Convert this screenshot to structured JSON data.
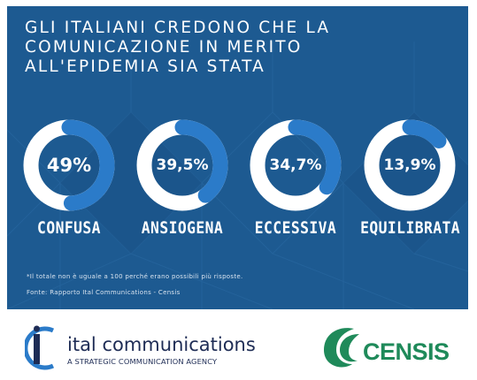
{
  "title_lines": [
    "GLI ITALIANI CREDONO CHE LA",
    "COMUNICAZIONE IN MERITO",
    "ALL'EPIDEMIA SIA STATA"
  ],
  "chart_data": {
    "type": "donut",
    "categories": [
      "CONFUSA",
      "ANSIOGENA",
      "ECCESSIVA",
      "EQUILIBRATA"
    ],
    "values": [
      49,
      39.5,
      34.7,
      13.9
    ],
    "value_labels": [
      "49%",
      "39,5%",
      "34,7%",
      "13,9%"
    ],
    "max": 100
  },
  "footnote": "*Il totale non è uguale a 100 perché erano possibili più risposte.",
  "source": "Fonte: Rapporto Ital Communications - Censis",
  "logos": {
    "ital_name": "ital communications",
    "ital_tagline": "A STRATEGIC COMMUNICATION AGENCY",
    "censis_name": "CENSIS"
  },
  "colors": {
    "panel_bg": "#1d5a91",
    "ring_track": "#ffffff",
    "ring_fill": "#2b7bc9",
    "censis_green": "#1f8a5a",
    "ital_navy": "#1e2c55"
  }
}
